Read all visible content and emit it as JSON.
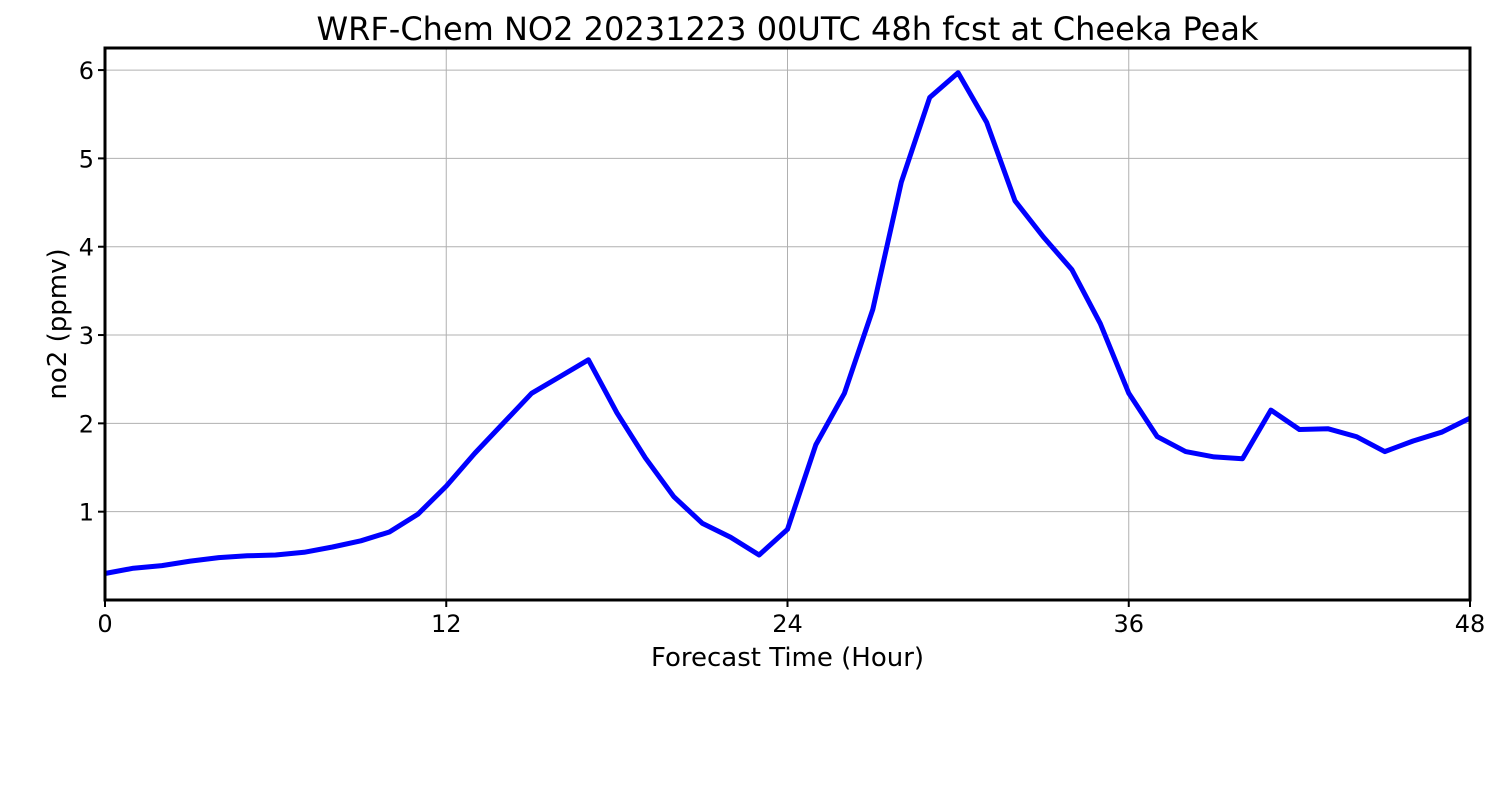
{
  "chart_data": {
    "type": "line",
    "title": "WRF-Chem NO2  20231223 00UTC 48h fcst at Cheeka Peak",
    "xlabel": "Forecast Time (Hour)",
    "ylabel": "no2  (ppmv)",
    "xlim": [
      0,
      48
    ],
    "ylim": [
      0,
      6.25
    ],
    "xticks": [
      0,
      12,
      24,
      36,
      48
    ],
    "yticks": [
      1,
      2,
      3,
      4,
      5,
      6
    ],
    "grid": true,
    "series": [
      {
        "color": "#0000ff",
        "x": [
          0,
          1,
          2,
          3,
          4,
          5,
          6,
          7,
          8,
          9,
          10,
          11,
          12,
          13,
          14,
          15,
          16,
          17,
          18,
          19,
          20,
          21,
          22,
          23,
          24,
          25,
          26,
          27,
          28,
          29,
          30,
          31,
          32,
          33,
          34,
          35,
          36,
          37,
          38,
          39,
          40,
          41,
          42,
          43,
          44,
          45,
          46,
          47,
          48
        ],
        "values": [
          0.3,
          0.36,
          0.39,
          0.44,
          0.48,
          0.5,
          0.51,
          0.54,
          0.6,
          0.67,
          0.77,
          0.97,
          1.29,
          1.66,
          2.0,
          2.34,
          2.53,
          2.72,
          2.12,
          1.61,
          1.17,
          0.87,
          0.71,
          0.51,
          0.8,
          1.76,
          2.34,
          3.29,
          4.73,
          5.69,
          5.97,
          5.41,
          4.52,
          4.11,
          3.74,
          3.13,
          2.34,
          1.85,
          1.68,
          1.62,
          1.6,
          2.15,
          1.93,
          1.94,
          1.85,
          1.68,
          1.8,
          1.9,
          2.06
        ]
      }
    ]
  }
}
